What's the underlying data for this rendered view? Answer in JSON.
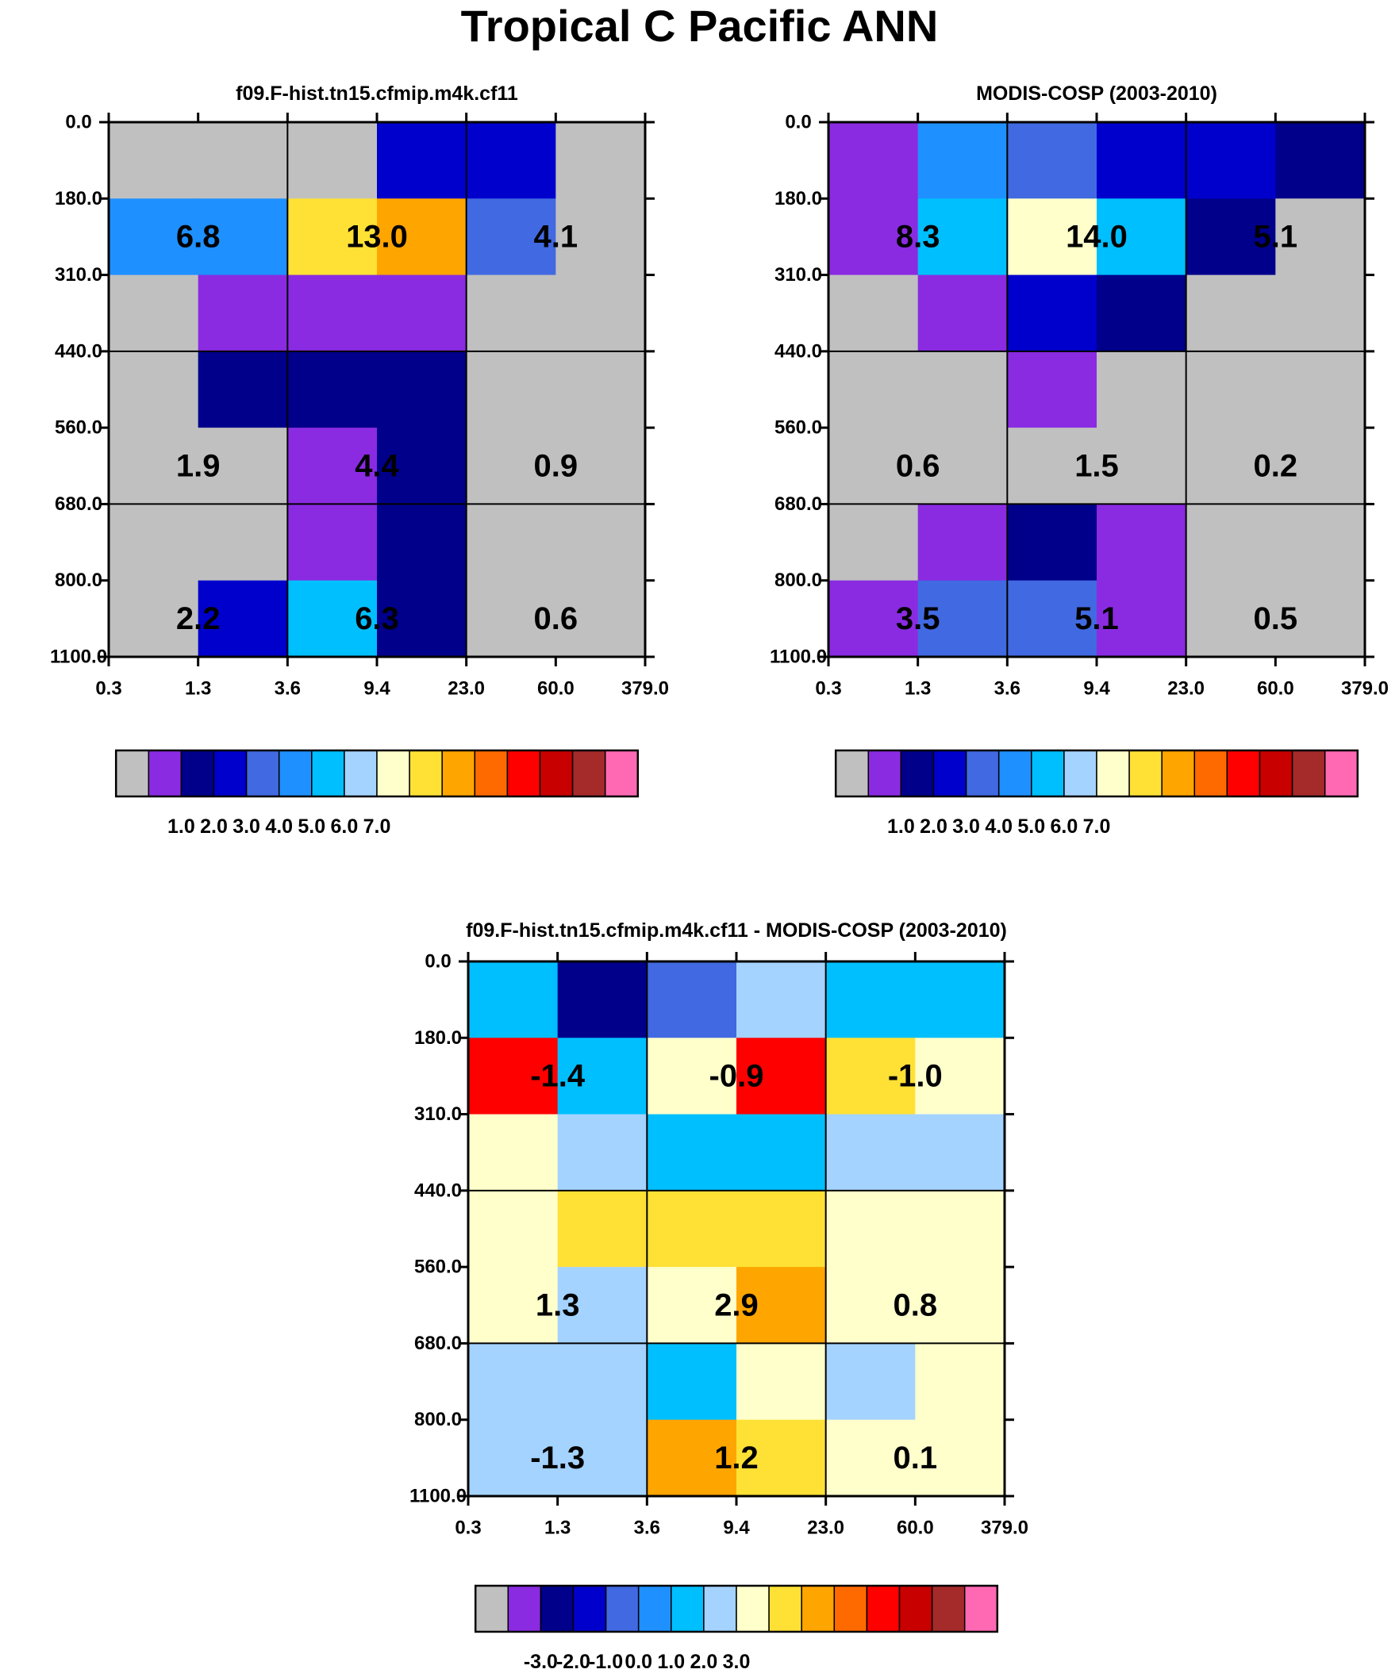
{
  "title": "Tropical C Pacific ANN",
  "chart_data": [
    {
      "type": "heatmap",
      "title": "f09.F-hist.tn15.cfmip.m4k.cf11",
      "x_ticks": [
        "0.3",
        "1.3",
        "3.6",
        "9.4",
        "23.0",
        "60.0",
        "379.0"
      ],
      "y_ticks": [
        "0.0",
        "180.0",
        "310.0",
        "440.0",
        "560.0",
        "680.0",
        "800.0",
        "1100.0"
      ],
      "cells": [
        [
          "grey",
          "grey",
          "grey",
          "c3",
          "c3",
          "grey"
        ],
        [
          "c5",
          "c5",
          "c9",
          "c11",
          "c4",
          "grey"
        ],
        [
          "grey",
          "c1",
          "c1",
          "c1",
          "grey",
          "grey"
        ],
        [
          "grey",
          "c2",
          "c2",
          "c2",
          "grey",
          "grey"
        ],
        [
          "grey",
          "grey",
          "c1",
          "c2",
          "grey",
          "grey"
        ],
        [
          "grey",
          "grey",
          "c1",
          "c2",
          "grey",
          "grey"
        ],
        [
          "grey",
          "c3",
          "c6",
          "c2",
          "grey",
          "grey"
        ]
      ],
      "box_values": [
        [
          "6.8",
          "13.0",
          "4.1"
        ],
        [
          "1.9",
          "4.4",
          "0.9"
        ],
        [
          "2.2",
          "6.3",
          "0.6"
        ]
      ],
      "colorbar": {
        "ticks": [
          "1.0",
          "2.0",
          "3.0",
          "4.0",
          "5.0",
          "6.0",
          "7.0"
        ]
      }
    },
    {
      "type": "heatmap",
      "title": "MODIS-COSP (2003-2010)",
      "x_ticks": [
        "0.3",
        "1.3",
        "3.6",
        "9.4",
        "23.0",
        "60.0",
        "379.0"
      ],
      "y_ticks": [
        "0.0",
        "180.0",
        "310.0",
        "440.0",
        "560.0",
        "680.0",
        "800.0",
        "1100.0"
      ],
      "cells": [
        [
          "c1",
          "c5",
          "c4",
          "c3",
          "c3",
          "c2"
        ],
        [
          "c1",
          "c6",
          "c8",
          "c6",
          "c2",
          "grey"
        ],
        [
          "grey",
          "c1",
          "c3",
          "c2",
          "grey",
          "grey"
        ],
        [
          "grey",
          "grey",
          "c1",
          "grey",
          "grey",
          "grey"
        ],
        [
          "grey",
          "grey",
          "grey",
          "grey",
          "grey",
          "grey"
        ],
        [
          "grey",
          "c1",
          "c2",
          "c1",
          "grey",
          "grey"
        ],
        [
          "c1",
          "c4",
          "c4",
          "c1",
          "grey",
          "grey"
        ]
      ],
      "box_values": [
        [
          "8.3",
          "14.0",
          "5.1"
        ],
        [
          "0.6",
          "1.5",
          "0.2"
        ],
        [
          "3.5",
          "5.1",
          "0.5"
        ]
      ],
      "colorbar": {
        "ticks": [
          "1.0",
          "2.0",
          "3.0",
          "4.0",
          "5.0",
          "6.0",
          "7.0"
        ]
      }
    },
    {
      "type": "heatmap",
      "title": "f09.F-hist.tn15.cfmip.m4k.cf11 - MODIS-COSP (2003-2010)",
      "x_ticks": [
        "0.3",
        "1.3",
        "3.6",
        "9.4",
        "23.0",
        "60.0",
        "379.0"
      ],
      "y_ticks": [
        "0.0",
        "180.0",
        "310.0",
        "440.0",
        "560.0",
        "680.0",
        "800.0",
        "1100.0"
      ],
      "cells": [
        [
          "c6",
          "c2",
          "c4",
          "c7",
          "c6",
          "c6"
        ],
        [
          "c12",
          "c6",
          "c8",
          "c12",
          "c9",
          "c8"
        ],
        [
          "c8",
          "c7",
          "c6",
          "c6",
          "c7",
          "c7"
        ],
        [
          "c8",
          "c9",
          "c9",
          "c9",
          "c8",
          "c8"
        ],
        [
          "c8",
          "c7",
          "c8",
          "c10",
          "c8",
          "c8"
        ],
        [
          "c7",
          "c7",
          "c6",
          "c8",
          "c7",
          "c8"
        ],
        [
          "c7",
          "c7",
          "c10",
          "c9",
          "c8",
          "c8"
        ]
      ],
      "box_values": [
        [
          "-1.4",
          "-0.9",
          "-1.0"
        ],
        [
          "1.3",
          "2.9",
          "0.8"
        ],
        [
          "-1.3",
          "1.2",
          "0.1"
        ]
      ],
      "colorbar": {
        "ticks": [
          "-3.0",
          "-2.0",
          "-1.0",
          "0.0",
          "1.0",
          "2.0",
          "3.0"
        ]
      }
    }
  ],
  "colors": {
    "palette": [
      "#c0c0c0",
      "#8a2be2",
      "#00008b",
      "#0000cd",
      "#4169e1",
      "#1e90ff",
      "#00bfff",
      "#a4d3ff",
      "#ffffcc",
      "#ffe135",
      "#ffa500",
      "#ff6a00",
      "#ff0000",
      "#c80000",
      "#a52a2a",
      "#ff69b4"
    ],
    "grey": "#c0c0c0",
    "c1": "#8a2be2",
    "c2": "#00008b",
    "c3": "#0000cd",
    "c4": "#4169e1",
    "c5": "#1e90ff",
    "c6": "#00bfff",
    "c7": "#a4d3ff",
    "c8": "#ffffcc",
    "c9": "#ffe135",
    "c10": "#ffa500",
    "c11": "#ffa500",
    "c12": "#ff0000"
  }
}
